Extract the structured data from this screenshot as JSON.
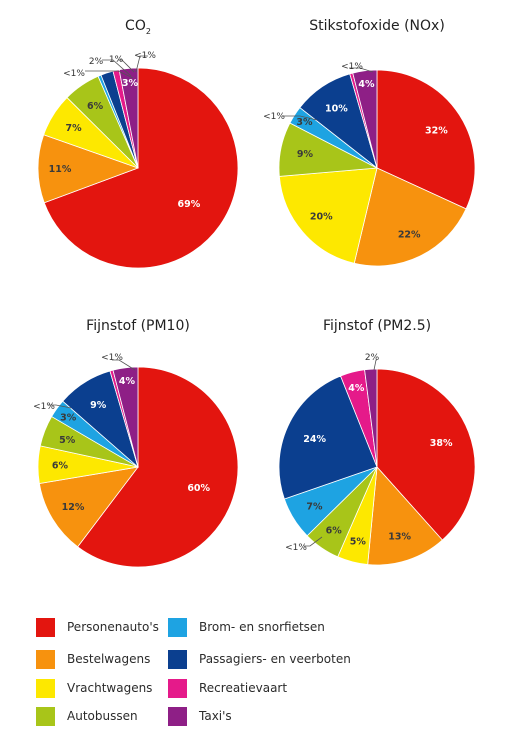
{
  "categories": [
    "Personenauto's",
    "Bestelwagens",
    "Vrachtwagens",
    "Autobussen",
    "Brom- en snorfietsen",
    "Passagiers- en veerboten",
    "Recreatievaart",
    "Taxi's"
  ],
  "colors": [
    "#e3150f",
    "#f7920e",
    "#fde800",
    "#a8c519",
    "#1ea3e2",
    "#0b3f8f",
    "#e51a8a",
    "#8e1f86"
  ],
  "chart_data": [
    {
      "type": "pie",
      "title_main": "CO",
      "title_sub": "2",
      "values": [
        69,
        11,
        7,
        6,
        0.5,
        2,
        1,
        3
      ],
      "labels": [
        "69%",
        "11%",
        "7%",
        "6%",
        "<1%",
        "2%",
        "1%",
        "3%"
      ]
    },
    {
      "type": "pie",
      "title_main": "Stikstofoxide (NOx)",
      "title_sub": "",
      "values": [
        32,
        22,
        20,
        9,
        3,
        10,
        0.5,
        4
      ],
      "labels": [
        "32%",
        "22%",
        "20%",
        "9%",
        "3%",
        "10%",
        "<1%",
        "4%"
      ]
    },
    {
      "type": "pie",
      "title_main": "Fijnstof (PM10)",
      "title_sub": "",
      "values": [
        60,
        12,
        6,
        5,
        3,
        9,
        0.5,
        4
      ],
      "labels": [
        "60%",
        "12%",
        "6%",
        "5%",
        "3%",
        "9%",
        "<1%",
        "4%"
      ]
    },
    {
      "type": "pie",
      "title_main": "Fijnstof (PM2.5)",
      "title_sub": "",
      "values": [
        38,
        13,
        5,
        6,
        7,
        24,
        4,
        2
      ],
      "labels": [
        "38%",
        "13%",
        "5%",
        "6%",
        "7%",
        "24%",
        "4%",
        "2%"
      ]
    }
  ],
  "outside_labels": [
    {
      "chart": 0,
      "text": "<1%"
    },
    {
      "chart": 0,
      "text": "2%"
    },
    {
      "chart": 0,
      "text": "1%"
    },
    {
      "chart": 0,
      "text": "<1%"
    },
    {
      "chart": 1,
      "text": "<1%"
    },
    {
      "chart": 1,
      "text": "<1%"
    },
    {
      "chart": 2,
      "text": "<1%"
    },
    {
      "chart": 2,
      "text": "<1%"
    },
    {
      "chart": 3,
      "text": "<1%"
    },
    {
      "chart": 3,
      "text": "2%"
    }
  ]
}
